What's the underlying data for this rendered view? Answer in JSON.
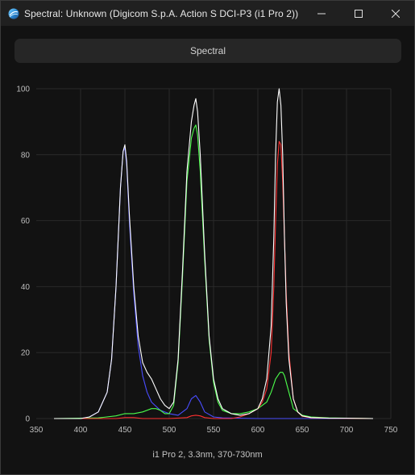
{
  "window": {
    "title": "Spectral: Unknown (Digicom S.p.A. Action S DCI-P3 (i1 Pro 2))",
    "icon": "app-logo-icon",
    "controls": [
      "minimize-icon",
      "maximize-icon",
      "close-icon"
    ]
  },
  "header": {
    "label": "Spectral"
  },
  "colors": {
    "background": "#121212",
    "grid": "#2a2a2a",
    "white_series": "#ffffff",
    "blue_series": "#4a4dff",
    "green_series": "#4cff4c",
    "red_series": "#ff3030"
  },
  "chart_data": {
    "type": "line",
    "title": "",
    "xlabel": "i1 Pro 2, 3.3nm, 370-730nm",
    "ylabel": "",
    "xlim": [
      350,
      750
    ],
    "ylim": [
      0,
      100
    ],
    "x_ticks": [
      350,
      400,
      450,
      500,
      550,
      600,
      650,
      700,
      750
    ],
    "y_ticks": [
      0,
      20,
      40,
      60,
      80,
      100
    ],
    "grid": true,
    "series": [
      {
        "color": "#ffffff",
        "x": [
          370,
          400,
          410,
          420,
          430,
          435,
          440,
          445,
          448,
          450,
          452,
          455,
          460,
          465,
          470,
          475,
          480,
          485,
          490,
          495,
          500,
          505,
          510,
          515,
          520,
          525,
          528,
          530,
          532,
          535,
          540,
          545,
          550,
          555,
          560,
          570,
          580,
          590,
          600,
          605,
          610,
          615,
          618,
          620,
          622,
          624,
          626,
          628,
          630,
          632,
          635,
          640,
          645,
          650,
          660,
          680,
          700,
          730
        ],
        "y": [
          0,
          0,
          0.5,
          2,
          8,
          18,
          40,
          70,
          81,
          83,
          78,
          62,
          40,
          25,
          17,
          14,
          12,
          9,
          6,
          4,
          3,
          5,
          18,
          45,
          75,
          90,
          95,
          97,
          93,
          80,
          50,
          25,
          12,
          6,
          3,
          1.5,
          1,
          1.5,
          3,
          6,
          12,
          28,
          55,
          80,
          96,
          100,
          95,
          80,
          55,
          35,
          18,
          6,
          2,
          0.8,
          0.3,
          0.1,
          0.1,
          0
        ]
      },
      {
        "color": "#4a4dff",
        "x": [
          370,
          400,
          410,
          420,
          430,
          435,
          440,
          445,
          448,
          450,
          452,
          455,
          460,
          465,
          470,
          475,
          480,
          490,
          500,
          510,
          520,
          525,
          530,
          535,
          540,
          550,
          560,
          600,
          730
        ],
        "y": [
          0,
          0,
          0.5,
          2,
          8,
          18,
          40,
          70,
          81,
          82,
          77,
          60,
          38,
          22,
          13,
          8,
          5,
          2.5,
          1.5,
          1,
          3,
          6,
          7,
          5,
          2,
          0.5,
          0.2,
          0,
          0
        ]
      },
      {
        "color": "#4cff4c",
        "x": [
          370,
          420,
          440,
          450,
          460,
          470,
          480,
          485,
          490,
          495,
          500,
          505,
          510,
          515,
          520,
          525,
          528,
          530,
          532,
          535,
          540,
          545,
          550,
          555,
          560,
          570,
          580,
          590,
          600,
          610,
          615,
          620,
          625,
          628,
          630,
          635,
          640,
          650,
          660,
          680,
          730
        ],
        "y": [
          0,
          0.2,
          0.8,
          1.5,
          1.5,
          2,
          3,
          3,
          2.5,
          1.5,
          1.5,
          4,
          17,
          43,
          72,
          85,
          88,
          89,
          86,
          75,
          48,
          24,
          11,
          5,
          2.5,
          1.5,
          1.5,
          2,
          3,
          5,
          8,
          12,
          14,
          14,
          13,
          8,
          3,
          1,
          0.5,
          0.2,
          0
        ]
      },
      {
        "color": "#ff3030",
        "x": [
          370,
          440,
          450,
          460,
          470,
          500,
          520,
          525,
          530,
          535,
          540,
          550,
          570,
          580,
          590,
          600,
          605,
          610,
          615,
          618,
          620,
          622,
          624,
          626,
          628,
          630,
          632,
          635,
          640,
          645,
          650,
          660,
          680,
          730
        ],
        "y": [
          0,
          0,
          0.3,
          0.3,
          0,
          0,
          0.3,
          0.8,
          1,
          0.8,
          0.3,
          0,
          0,
          0.5,
          1.5,
          3,
          5,
          9,
          20,
          40,
          60,
          77,
          84,
          83,
          72,
          55,
          38,
          20,
          6,
          2,
          0.7,
          0.2,
          0.1,
          0
        ]
      }
    ]
  }
}
